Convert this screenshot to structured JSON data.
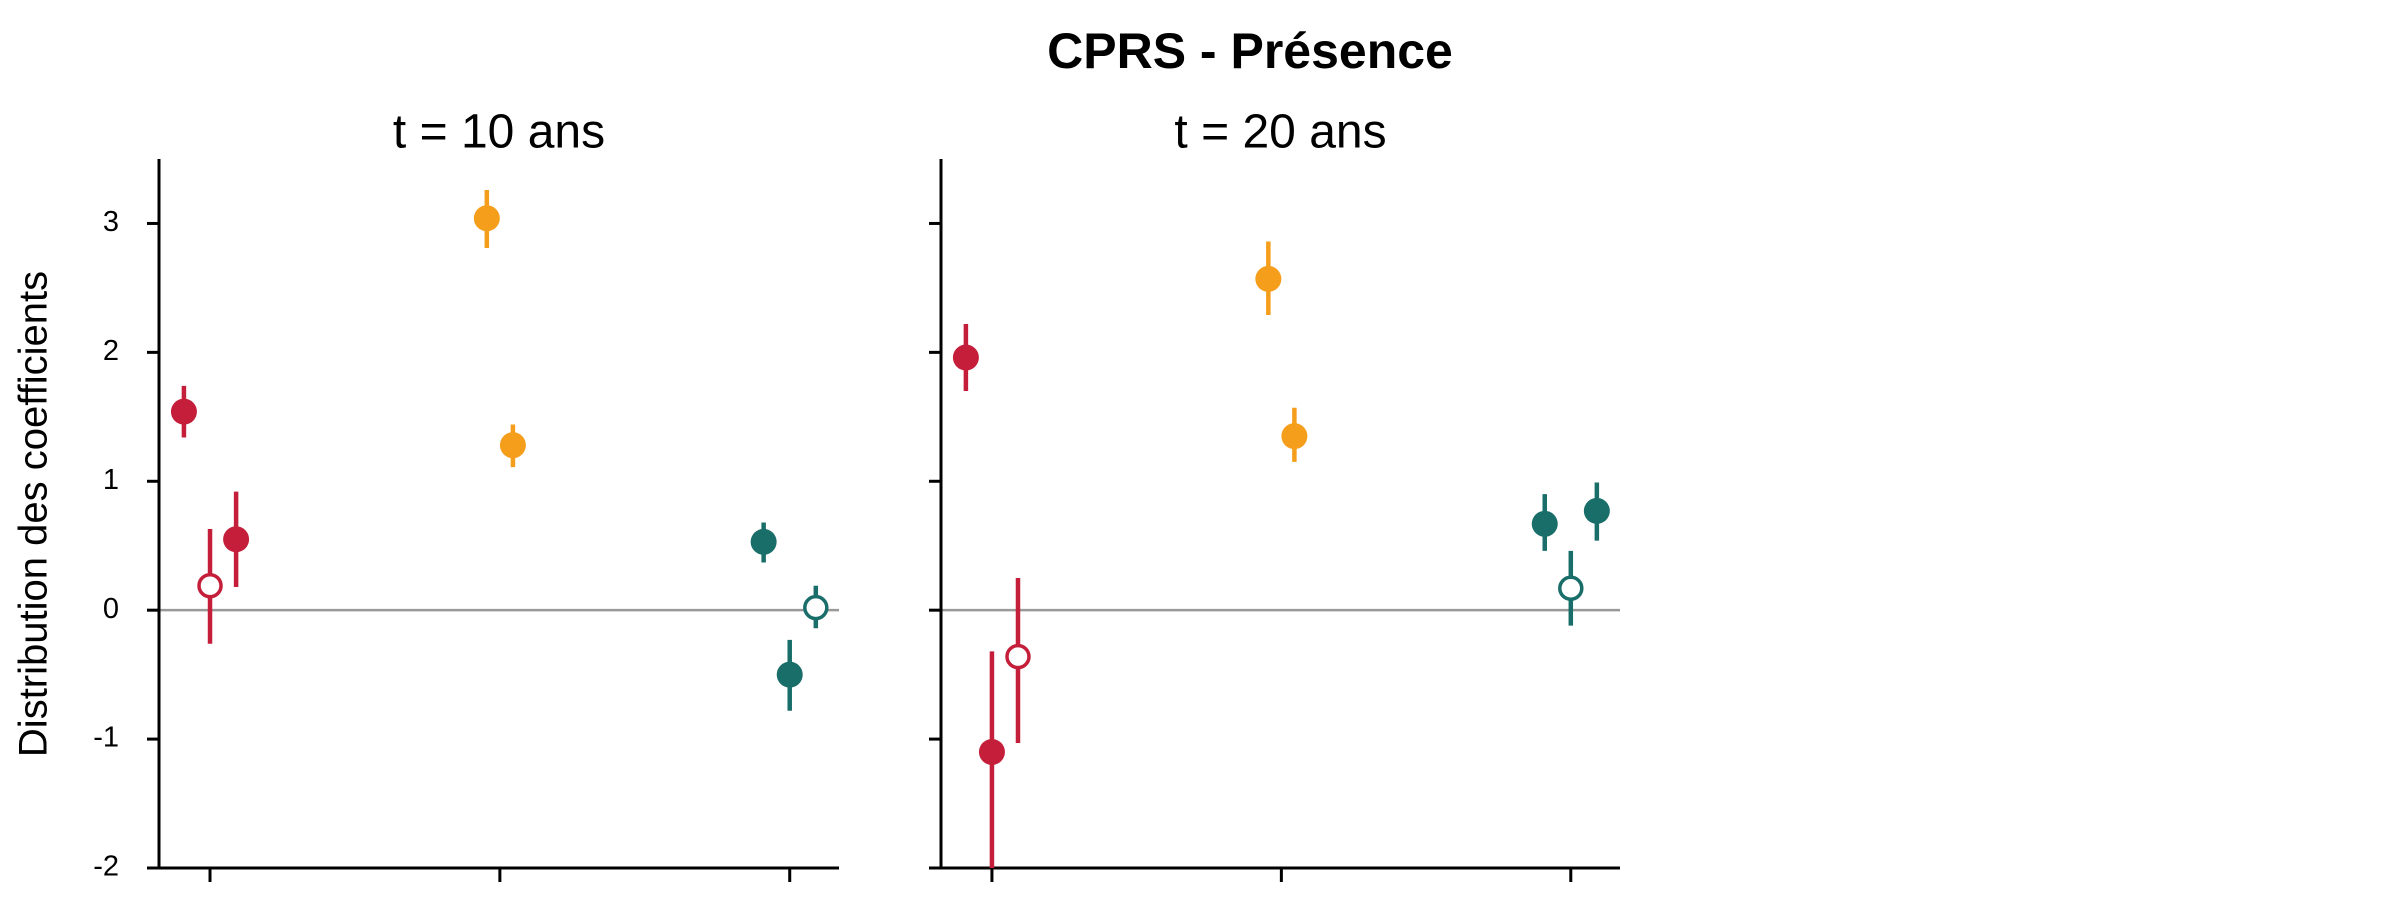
{
  "title": "CPRS - Présence",
  "y_label": "Distribution des coefficients",
  "chart_data": [
    {
      "type": "errorbar",
      "title": "t = 10 ans",
      "xlim": [
        0.824,
        3.17
      ],
      "xticks": [
        1,
        2,
        3
      ],
      "ylim": [
        -2,
        3.5
      ],
      "yticks": [
        -2,
        -1,
        0,
        1,
        2,
        3
      ],
      "hline": 0,
      "series": [
        {
          "color": "#c41e3a",
          "x": [
            0.91,
            1,
            1.09
          ],
          "values": [
            1.54,
            0.19,
            0.55
          ],
          "low": [
            1.34,
            -0.26,
            0.18
          ],
          "high": [
            1.74,
            0.63,
            0.92
          ],
          "hollow": [
            false,
            true,
            false
          ]
        },
        {
          "color": "#f59e1b",
          "x": [
            1.955,
            2.045
          ],
          "values": [
            3.04,
            1.28
          ],
          "low": [
            2.81,
            1.11
          ],
          "high": [
            3.26,
            1.44
          ],
          "hollow": [
            false,
            false
          ]
        },
        {
          "color": "#1a6e6a",
          "x": [
            2.91,
            3,
            3.09
          ],
          "values": [
            0.53,
            -0.5,
            0.02
          ],
          "low": [
            0.37,
            -0.78,
            -0.14
          ],
          "high": [
            0.68,
            -0.23,
            0.19
          ],
          "hollow": [
            false,
            false,
            true
          ]
        }
      ]
    },
    {
      "type": "errorbar",
      "title": "t = 20 ans",
      "xlim": [
        0.824,
        3.17
      ],
      "xticks": [
        1,
        2,
        3
      ],
      "ylim": [
        -2,
        3.5
      ],
      "yticks": [
        -2,
        -1,
        0,
        1,
        2,
        3
      ],
      "hline": 0,
      "series": [
        {
          "color": "#c41e3a",
          "x": [
            0.91,
            1,
            1.09
          ],
          "values": [
            1.96,
            -1.1,
            -0.36
          ],
          "low": [
            1.7,
            -2.0,
            -1.03
          ],
          "high": [
            2.22,
            -0.32,
            0.25
          ],
          "hollow": [
            false,
            false,
            true
          ]
        },
        {
          "color": "#f59e1b",
          "x": [
            1.955,
            2.045
          ],
          "values": [
            2.57,
            1.35
          ],
          "low": [
            2.29,
            1.15
          ],
          "high": [
            2.86,
            1.57
          ],
          "hollow": [
            false,
            false
          ]
        },
        {
          "color": "#1a6e6a",
          "x": [
            2.91,
            3,
            3.09
          ],
          "values": [
            0.67,
            0.17,
            0.77
          ],
          "low": [
            0.46,
            -0.12,
            0.54
          ],
          "high": [
            0.9,
            0.46,
            0.99
          ],
          "hollow": [
            false,
            true,
            false
          ]
        }
      ]
    }
  ]
}
